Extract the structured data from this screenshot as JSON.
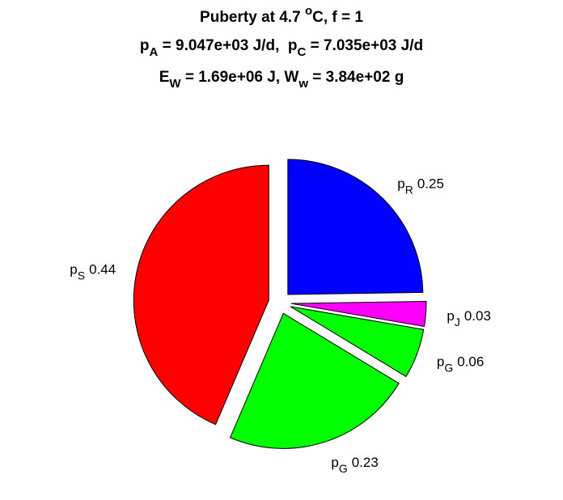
{
  "chart_data": {
    "type": "pie",
    "title": [
      [
        {
          "text": "Puberty at 4.7 ",
          "style": "normal"
        },
        {
          "text": "o",
          "style": "sup"
        },
        {
          "text": "C, f = 1",
          "style": "normal"
        }
      ],
      [
        {
          "text": "p",
          "style": "normal"
        },
        {
          "text": "A",
          "style": "sub"
        },
        {
          "text": " = 9.047e+03 J/d,  p",
          "style": "normal"
        },
        {
          "text": "C",
          "style": "sub"
        },
        {
          "text": " = 7.035e+03 J/d",
          "style": "normal"
        }
      ],
      [
        {
          "text": "E",
          "style": "normal"
        },
        {
          "text": "W",
          "style": "sub"
        },
        {
          "text": " = 1.69e+06 J, W",
          "style": "normal"
        },
        {
          "text": "w",
          "style": "sub"
        },
        {
          "text": " = 3.84e+02 g",
          "style": "normal"
        }
      ]
    ],
    "labels": [
      {
        "base": "p",
        "sub": "R"
      },
      {
        "base": "p",
        "sub": "J"
      },
      {
        "base": "p",
        "sub": "G"
      },
      {
        "base": "p",
        "sub": "G"
      },
      {
        "base": "p",
        "sub": "S"
      }
    ],
    "values": [
      0.25,
      0.03,
      0.06,
      0.23,
      0.44
    ],
    "colors": [
      "#0000ff",
      "#ff00ff",
      "#00ff00",
      "#00ff00",
      "#ff0000"
    ],
    "direction": "clockwise",
    "start": "top",
    "exploded": true
  }
}
